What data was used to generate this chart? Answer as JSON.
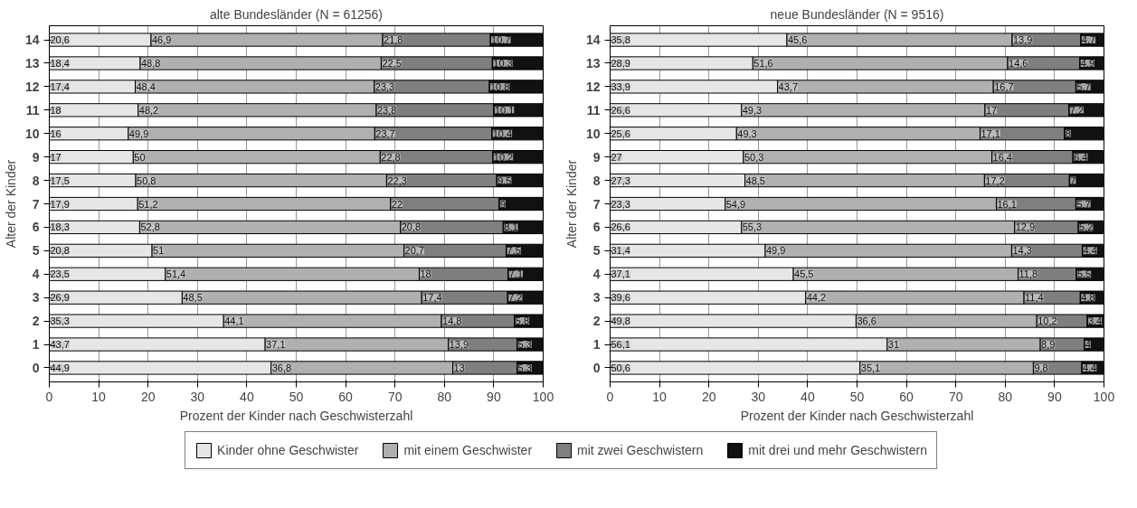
{
  "chart_data": [
    {
      "type": "bar",
      "orientation": "horizontal",
      "stacked": true,
      "title": "alte Bundesländer (N = 61256)",
      "xlabel": "Prozent der Kinder nach Geschwisterzahl",
      "ylabel": "Alter der Kinder",
      "categories": [
        "14",
        "13",
        "12",
        "11",
        "10",
        "9",
        "8",
        "7",
        "6",
        "5",
        "4",
        "3",
        "2",
        "1",
        "0"
      ],
      "xlim": [
        0,
        100
      ],
      "xticks": [
        0,
        10,
        20,
        30,
        40,
        50,
        60,
        70,
        80,
        90,
        100
      ],
      "grid": "x",
      "legend": "bottom",
      "series": [
        {
          "name": "Kinder ohne Geschwister",
          "color": "#e6e6e6",
          "values": [
            20.6,
            18.4,
            17.4,
            18,
            16,
            17,
            17.5,
            17.9,
            18.3,
            20.8,
            23.5,
            26.9,
            35.3,
            43.7,
            44.9
          ],
          "value_labels": [
            "20,6",
            "18,4",
            "17,4",
            "18",
            "16",
            "17",
            "17,5",
            "17,9",
            "18,3",
            "20,8",
            "23,5",
            "26,9",
            "35,3",
            "43,7",
            "44,9"
          ]
        },
        {
          "name": "mit einem Geschwister",
          "color": "#b0b0b0",
          "values": [
            46.9,
            48.8,
            48.4,
            48.2,
            49.9,
            50,
            50.8,
            51.2,
            52.8,
            51,
            51.4,
            48.5,
            44.1,
            37.1,
            36.8
          ],
          "value_labels": [
            "46,9",
            "48,8",
            "48,4",
            "48,2",
            "49,9",
            "50",
            "50,8",
            "51,2",
            "52,8",
            "51",
            "51,4",
            "48,5",
            "44,1",
            "37,1",
            "36,8"
          ]
        },
        {
          "name": "mit zwei Geschwistern",
          "color": "#7f7f7f",
          "values": [
            21.8,
            22.5,
            23.3,
            23.8,
            23.7,
            22.8,
            22.3,
            22,
            20.8,
            20.7,
            18,
            17.4,
            14.8,
            13.9,
            13
          ],
          "value_labels": [
            "21,8",
            "22,5",
            "23,3",
            "23,8",
            "23,7",
            "22,8",
            "22,3",
            "22",
            "20,8",
            "20,7",
            "18",
            "17,4",
            "14,8",
            "13,9",
            "13"
          ]
        },
        {
          "name": "mit drei und mehr Geschwistern",
          "color": "#111111",
          "values": [
            10.7,
            10.3,
            10.8,
            10.1,
            10.4,
            10.2,
            9.5,
            9,
            8.1,
            7.5,
            7.1,
            7.2,
            5.8,
            5.3,
            5.3
          ],
          "value_labels": [
            "10,7",
            "10,3",
            "10,8",
            "10,1",
            "10,4",
            "10,2",
            "9,5",
            "9",
            "8,1",
            "7,5",
            "7,1",
            "7,2",
            "5,8",
            "5,3",
            "5,3"
          ]
        }
      ]
    },
    {
      "type": "bar",
      "orientation": "horizontal",
      "stacked": true,
      "title": "neue Bundesländer (N = 9516)",
      "xlabel": "Prozent der Kinder nach Geschwisterzahl",
      "ylabel": "Alter der Kinder",
      "categories": [
        "14",
        "13",
        "12",
        "11",
        "10",
        "9",
        "8",
        "7",
        "6",
        "5",
        "4",
        "3",
        "2",
        "1",
        "0"
      ],
      "xlim": [
        0,
        100
      ],
      "xticks": [
        0,
        10,
        20,
        30,
        40,
        50,
        60,
        70,
        80,
        90,
        100
      ],
      "grid": "x",
      "series": [
        {
          "color": "#e6e6e6",
          "values": [
            35.8,
            28.9,
            33.9,
            26.6,
            25.6,
            27,
            27.3,
            23.3,
            26.6,
            31.4,
            37.1,
            39.6,
            49.8,
            56.1,
            50.6
          ],
          "value_labels": [
            "35,8",
            "28,9",
            "33,9",
            "26,6",
            "25,6",
            "27",
            "27,3",
            "23,3",
            "26,6",
            "31,4",
            "37,1",
            "39,6",
            "49,8",
            "56,1",
            "50,6"
          ]
        },
        {
          "color": "#b0b0b0",
          "values": [
            45.6,
            51.6,
            43.7,
            49.3,
            49.3,
            50.3,
            48.5,
            54.9,
            55.3,
            49.9,
            45.5,
            44.2,
            36.6,
            31,
            35.1
          ],
          "value_labels": [
            "45,6",
            "51,6",
            "43,7",
            "49,3",
            "49,3",
            "50,3",
            "48,5",
            "54,9",
            "55,3",
            "49,9",
            "45,5",
            "44,2",
            "36,6",
            "31",
            "35,1"
          ]
        },
        {
          "color": "#7f7f7f",
          "values": [
            13.9,
            14.6,
            16.7,
            17,
            17.1,
            16.4,
            17.2,
            16.1,
            12.9,
            14.3,
            11.8,
            11.4,
            10.2,
            8.9,
            9.8
          ],
          "value_labels": [
            "13,9",
            "14,6",
            "16,7",
            "17",
            "17,1",
            "16,4",
            "17,2",
            "16,1",
            "12,9",
            "14,3",
            "11,8",
            "11,4",
            "10,2",
            "8,9",
            "9,8"
          ]
        },
        {
          "color": "#111111",
          "values": [
            4.7,
            4.9,
            5.7,
            7.2,
            8,
            6.4,
            7,
            5.7,
            5.2,
            4.4,
            5.5,
            4.8,
            3.4,
            4,
            4.4
          ],
          "value_labels": [
            "4,7",
            "4,9",
            "5,7",
            "7,2",
            "8",
            "6,4",
            "7",
            "5,7",
            "5,2",
            "4,4",
            "5,5",
            "4,8",
            "3,4",
            "4",
            "4,4"
          ]
        }
      ]
    }
  ]
}
